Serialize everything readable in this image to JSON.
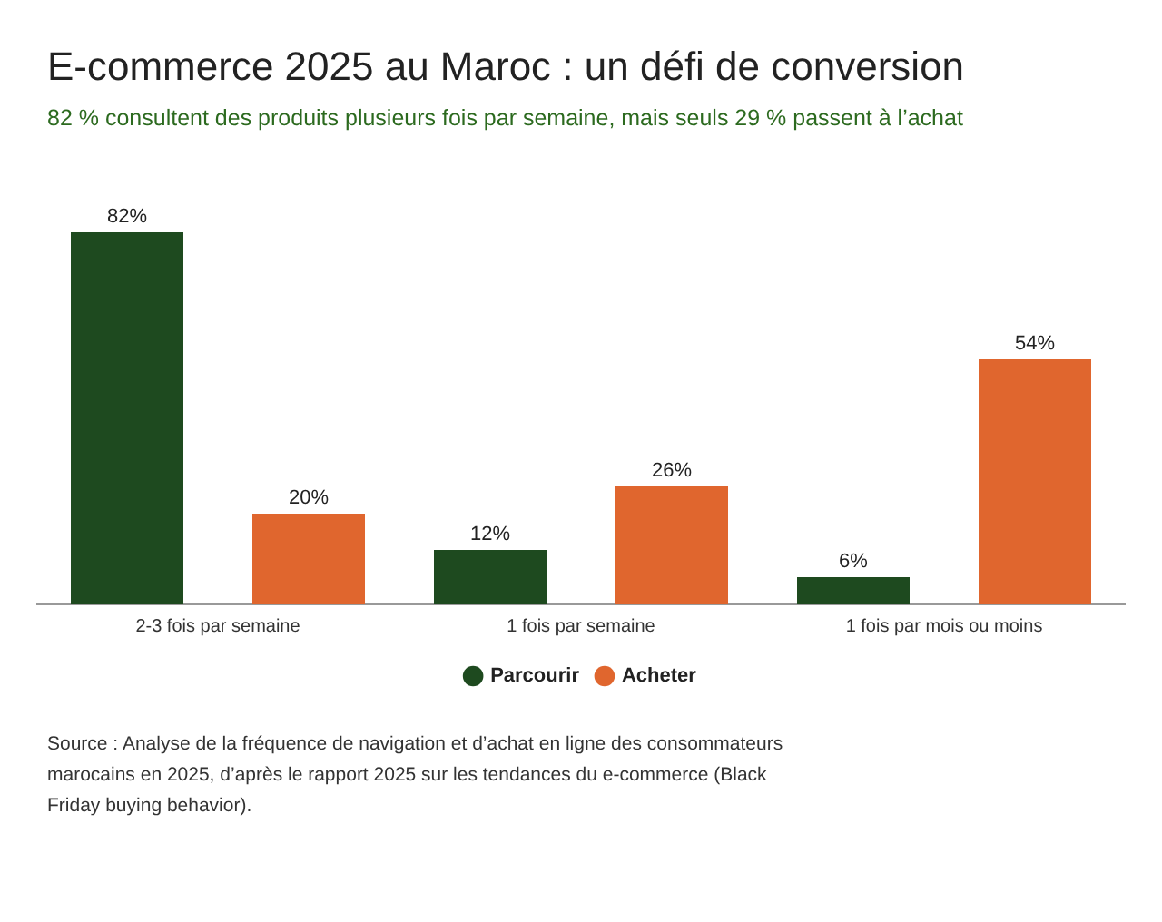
{
  "chart_data": {
    "type": "bar",
    "title": "E-commerce 2025 au Maroc : un défi de conversion",
    "subtitle": "82 % consultent des produits plusieurs fois par semaine, mais seuls 29 % passent à l’achat",
    "categories": [
      "2-3 fois par semaine",
      "1 fois par semaine",
      "1 fois par mois ou moins"
    ],
    "series": [
      {
        "name": "Parcourir",
        "color": "#1e4a1f",
        "values": [
          82,
          12,
          6
        ],
        "value_labels": [
          "82%",
          "12%",
          "6%"
        ]
      },
      {
        "name": "Acheter",
        "color": "#e0662e",
        "values": [
          20,
          26,
          54
        ],
        "value_labels": [
          "20%",
          "26%",
          "54%"
        ]
      }
    ],
    "tick_labels": "x",
    "legend": "bottom",
    "grid": false,
    "annotations": [
      "Source : Analyse de la fréquence de navigation et d’achat en ligne des consommateurs marocains en 2025, d’après le rapport 2025 sur les tendances du e-commerce (Black Friday buying behavior)."
    ]
  }
}
